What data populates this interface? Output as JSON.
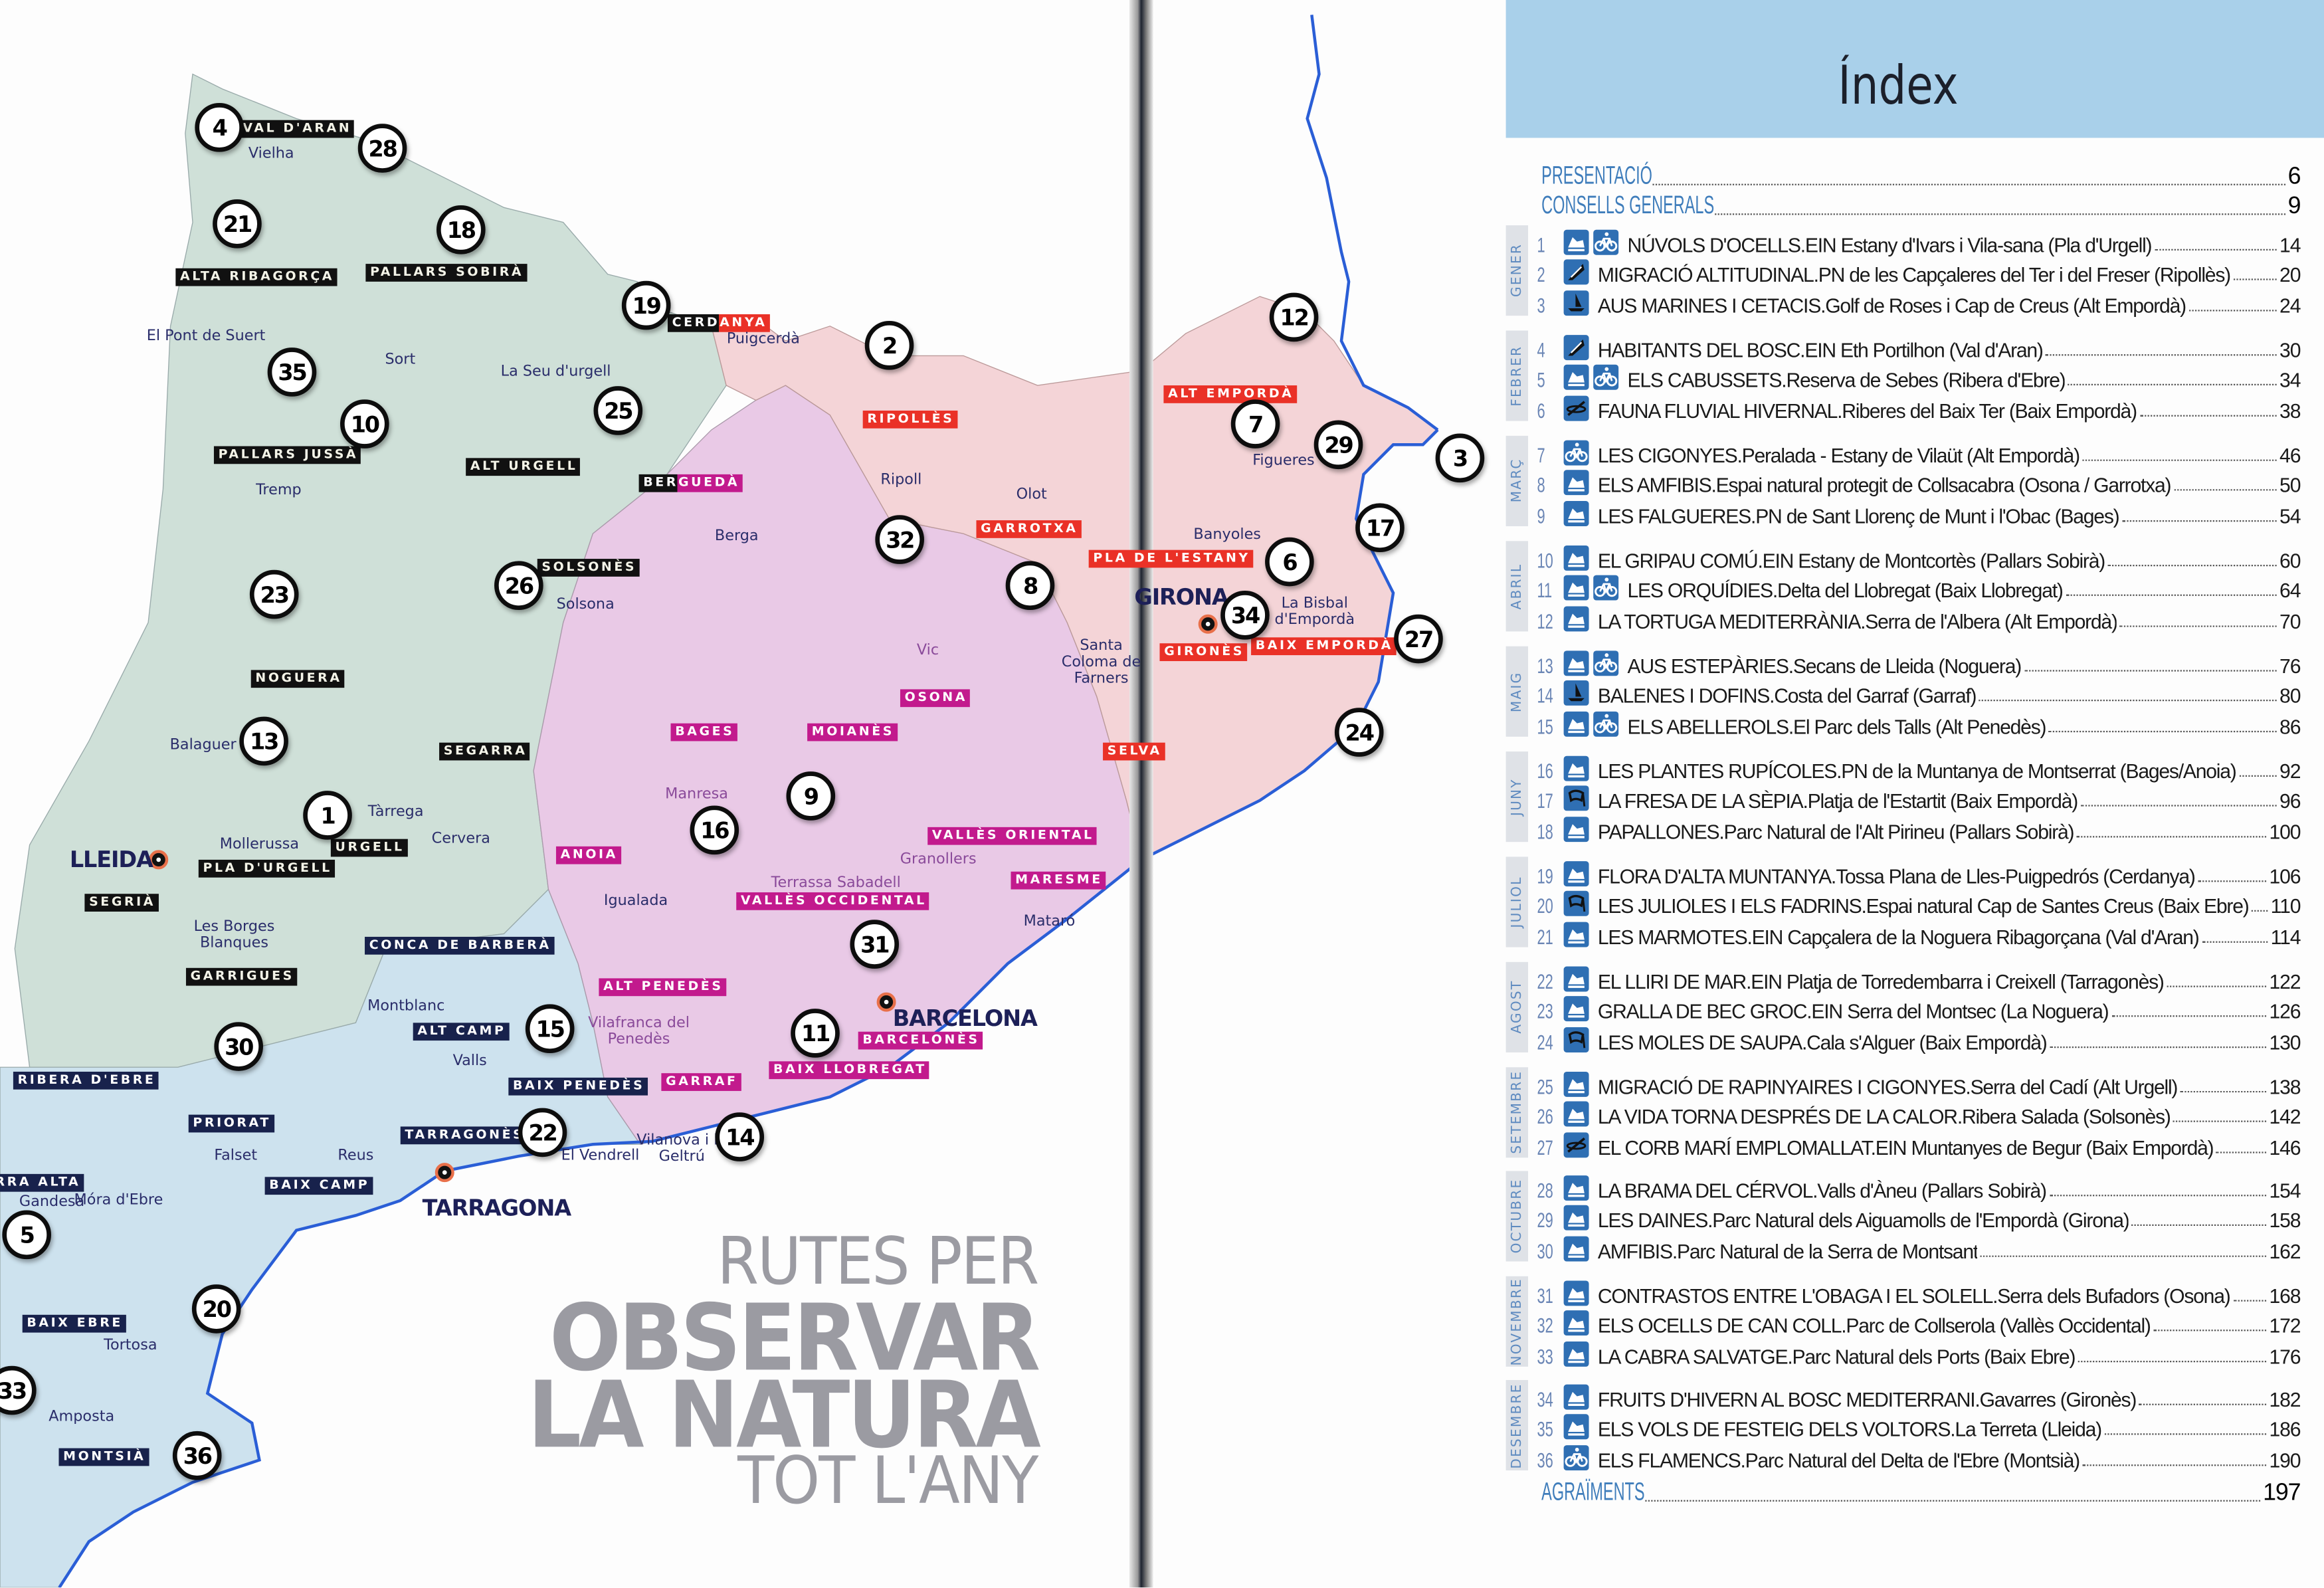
{
  "book_title": {
    "line1": "RUTES PER",
    "line2": "OBSERVAR",
    "line3": "LA NATURA",
    "line4": "TOT L'ANY"
  },
  "colors": {
    "pyrenees_lleida_region": "#cfe0d8",
    "tarragona_region": "#cde2ee",
    "barcelona_region": "#e9c9e6",
    "girona_region": "#f4d4d7",
    "coastline": "#2a5ed6",
    "index_band": "#a9d0ea",
    "index_heading": "#3f7dbb",
    "icon_blue": "#2f6fb3"
  },
  "map": {
    "capitals": [
      "LLEIDA",
      "BARCELONA",
      "TARRAGONA",
      "GIRONA"
    ],
    "route_markers": [
      "4",
      "28",
      "21",
      "18",
      "19",
      "2",
      "35",
      "10",
      "25",
      "12",
      "7",
      "29",
      "3",
      "17",
      "6",
      "32",
      "8",
      "26",
      "23",
      "34",
      "27",
      "24",
      "13",
      "1",
      "9",
      "16",
      "31",
      "11",
      "15",
      "30",
      "22",
      "14",
      "5",
      "20",
      "33",
      "36"
    ],
    "comarques": [
      {
        "name": "VAL D'ARAN",
        "style": "black"
      },
      {
        "name": "ALTA RIBAGORÇA",
        "style": "black"
      },
      {
        "name": "PALLARS SOBIRÀ",
        "style": "black"
      },
      {
        "name": "PALLARS JUSSÀ",
        "style": "black"
      },
      {
        "name": "ALT URGELL",
        "style": "black"
      },
      {
        "name": "SOLSONÈS",
        "style": "black"
      },
      {
        "name": "NOGUERA",
        "style": "black"
      },
      {
        "name": "SEGARRA",
        "style": "black"
      },
      {
        "name": "URGELL",
        "style": "black"
      },
      {
        "name": "PLA D'URGELL",
        "style": "black"
      },
      {
        "name": "SEGRIÀ",
        "style": "black"
      },
      {
        "name": "GARRIGUES",
        "style": "black"
      },
      {
        "name": "CERDANYA",
        "style": "black-red"
      },
      {
        "name": "BERGUEDÀ",
        "style": "black-magenta"
      },
      {
        "name": "CONCA DE BARBERÀ",
        "style": "navy"
      },
      {
        "name": "ALT CAMP",
        "style": "navy"
      },
      {
        "name": "RIBERA D'EBRE",
        "style": "navy"
      },
      {
        "name": "PRIORAT",
        "style": "navy"
      },
      {
        "name": "BAIX PENEDÈS",
        "style": "navy"
      },
      {
        "name": "TARRAGONÈS",
        "style": "navy"
      },
      {
        "name": "BAIX CAMP",
        "style": "navy"
      },
      {
        "name": "RRA ALTA",
        "style": "navy"
      },
      {
        "name": "BAIX EBRE",
        "style": "navy"
      },
      {
        "name": "MONTSIÀ",
        "style": "navy"
      },
      {
        "name": "BAGES",
        "style": "magenta"
      },
      {
        "name": "MOIANÈS",
        "style": "magenta"
      },
      {
        "name": "OSONA",
        "style": "magenta"
      },
      {
        "name": "ANOIA",
        "style": "magenta"
      },
      {
        "name": "VALLÈS ORIENTAL",
        "style": "magenta"
      },
      {
        "name": "VALLÈS OCCIDENTAL",
        "style": "magenta"
      },
      {
        "name": "MARESME",
        "style": "magenta"
      },
      {
        "name": "ALT PENEDÈS",
        "style": "magenta"
      },
      {
        "name": "GARRAF",
        "style": "magenta"
      },
      {
        "name": "BAIX LLOBREGAT",
        "style": "magenta"
      },
      {
        "name": "BARCELONÈS",
        "style": "magenta"
      },
      {
        "name": "RIPOLLÈS",
        "style": "red"
      },
      {
        "name": "GARROTXA",
        "style": "red"
      },
      {
        "name": "ALT EMPORDÀ",
        "style": "red"
      },
      {
        "name": "PLA DE L'ESTANY",
        "style": "red"
      },
      {
        "name": "GIRONÈS",
        "style": "red"
      },
      {
        "name": "BAIX EMPORDÀ",
        "style": "red"
      },
      {
        "name": "SELVA",
        "style": "red"
      }
    ],
    "towns": [
      "Vielha",
      "El Pont de Suert",
      "Sort",
      "La Seu d'urgell",
      "Puigcerdà",
      "Tremp",
      "Ripoll",
      "Olot",
      "Berga",
      "Solsona",
      "Vic",
      "Santa Coloma de Farners",
      "Banyoles",
      "Figueres",
      "La Bisbal d'Empordà",
      "Balaguer",
      "Tàrrega",
      "Cervera",
      "Mollerussa",
      "Les Borges Blanques",
      "Manresa",
      "Igualada",
      "Terrassa  Sabadell",
      "Granollers",
      "Mataró",
      "Montblanc",
      "Valls",
      "Vilafranca del Penedès",
      "Falset",
      "Reus",
      "Móra d'Ebre",
      "Gandesa",
      "El Vendrell",
      "Vilanova i la Geltrú",
      "Tortosa",
      "Amposta"
    ]
  },
  "index": {
    "title": "Índex",
    "front": [
      {
        "label": "PRESENTACIÓ",
        "page": "6"
      },
      {
        "label": "CONSELLS GENERALS",
        "page": "9"
      }
    ],
    "back": {
      "label": "AGRAÏMENTS",
      "page": "197"
    },
    "months": [
      {
        "name": "GENER",
        "routes": [
          {
            "num": "1",
            "icons": [
              "hiking",
              "bike"
            ],
            "title": "NÚVOLS D'OCELLS",
            "place": "EIN Estany d'Ivars i Vila-sana (Pla d'Urgell)",
            "page": "14"
          },
          {
            "num": "2",
            "icons": [
              "forest"
            ],
            "title": "MIGRACIÓ ALTITUDINAL",
            "place": "PN de les Capçaleres del Ter i del Freser (Ripollès)",
            "page": "20"
          },
          {
            "num": "3",
            "icons": [
              "boat"
            ],
            "title": "AUS MARINES I CETACIS",
            "place": "Golf de Roses i Cap de Creus (Alt Empordà)",
            "page": "24"
          }
        ]
      },
      {
        "name": "FEBRER",
        "routes": [
          {
            "num": "4",
            "icons": [
              "forest"
            ],
            "title": "HABITANTS DEL BOSC",
            "place": "EIN Eth Portilhon (Val d'Aran)",
            "page": "30"
          },
          {
            "num": "5",
            "icons": [
              "hiking",
              "bike"
            ],
            "title": "ELS CABUSSETS",
            "place": "Reserva de Sebes (Ribera d'Ebre)",
            "page": "34"
          },
          {
            "num": "6",
            "icons": [
              "kayak"
            ],
            "title": "FAUNA FLUVIAL HIVERNAL",
            "place": "Riberes del Baix Ter (Baix Empordà)",
            "page": "38"
          }
        ]
      },
      {
        "name": "MARÇ",
        "routes": [
          {
            "num": "7",
            "icons": [
              "bike"
            ],
            "title": "LES CIGONYES",
            "place": "Peralada - Estany de Vilaüt (Alt Empordà)",
            "page": "46"
          },
          {
            "num": "8",
            "icons": [
              "hiking"
            ],
            "title": "ELS AMFIBIS",
            "place": "Espai natural protegit de Collsacabra (Osona / Garrotxa)",
            "page": "50"
          },
          {
            "num": "9",
            "icons": [
              "hiking"
            ],
            "title": "LES FALGUERES",
            "place": "PN de Sant Llorenç de Munt i l'Obac (Bages)",
            "page": "54"
          }
        ]
      },
      {
        "name": "ABRIL",
        "routes": [
          {
            "num": "10",
            "icons": [
              "hiking"
            ],
            "title": "EL GRIPAU COMÚ",
            "place": "EIN Estany de Montcortès (Pallars Sobirà)",
            "page": "60"
          },
          {
            "num": "11",
            "icons": [
              "hiking",
              "bike"
            ],
            "title": "LES ORQUÍDIES",
            "place": "Delta del Llobregat (Baix Llobregat)",
            "page": "64"
          },
          {
            "num": "12",
            "icons": [
              "hiking"
            ],
            "title": "LA TORTUGA MEDITERRÀNIA",
            "place": "Serra de l'Albera (Alt Empordà)",
            "page": "70"
          }
        ]
      },
      {
        "name": "MAIG",
        "routes": [
          {
            "num": "13",
            "icons": [
              "hiking",
              "bike"
            ],
            "title": "AUS ESTEPÀRIES",
            "place": "Secans de Lleida (Noguera)",
            "page": "76"
          },
          {
            "num": "14",
            "icons": [
              "boat"
            ],
            "title": "BALENES I DOFINS",
            "place": "Costa del Garraf (Garraf)",
            "page": "80"
          },
          {
            "num": "15",
            "icons": [
              "hiking",
              "bike"
            ],
            "title": "ELS ABELLEROLS",
            "place": "El Parc dels Talls (Alt Penedès)",
            "page": "86"
          }
        ]
      },
      {
        "name": "JUNY",
        "routes": [
          {
            "num": "16",
            "icons": [
              "hiking"
            ],
            "title": "LES PLANTES RUPÍCOLES",
            "place": "PN de la Muntanya de Montserrat (Bages/Anoia)",
            "page": "92"
          },
          {
            "num": "17",
            "icons": [
              "snorkel"
            ],
            "title": "LA FRESA DE LA SÈPIA",
            "place": "Platja de l'Estartit (Baix Empordà)",
            "page": "96"
          },
          {
            "num": "18",
            "icons": [
              "hiking"
            ],
            "title": "PAPALLONES",
            "place": "Parc Natural de l'Alt Pirineu (Pallars Sobirà)",
            "page": "100"
          }
        ]
      },
      {
        "name": "JULIOL",
        "routes": [
          {
            "num": "19",
            "icons": [
              "hiking"
            ],
            "title": "FLORA D'ALTA MUNTANYA",
            "place": "Tossa Plana de Lles-Puigpedrós (Cerdanya)",
            "page": "106"
          },
          {
            "num": "20",
            "icons": [
              "snorkel"
            ],
            "title": "LES JULIOLES I ELS FADRINS",
            "place": "Espai natural Cap de Santes Creus (Baix Ebre)",
            "page": "110"
          },
          {
            "num": "21",
            "icons": [
              "hiking"
            ],
            "title": "LES MARMOTES",
            "place": "EIN Capçalera de la Noguera Ribagorçana (Val d'Aran)",
            "page": "114"
          }
        ]
      },
      {
        "name": "AGOST",
        "routes": [
          {
            "num": "22",
            "icons": [
              "hiking"
            ],
            "title": "EL LLIRI DE MAR",
            "place": "EIN Platja de Torredembarra i Creixell (Tarragonès)",
            "page": "122"
          },
          {
            "num": "23",
            "icons": [
              "hiking"
            ],
            "title": "GRALLA DE BEC GROC",
            "place": "EIN Serra del Montsec (La Noguera)",
            "page": "126"
          },
          {
            "num": "24",
            "icons": [
              "snorkel"
            ],
            "title": "LES MOLES DE SAUPA",
            "place": "Cala s'Alguer (Baix Empordà)",
            "page": "130"
          }
        ]
      },
      {
        "name": "SETEMBRE",
        "routes": [
          {
            "num": "25",
            "icons": [
              "hiking"
            ],
            "title": "MIGRACIÓ DE RAPINYAIRES I CIGONYES",
            "place": "Serra del Cadí (Alt Urgell)",
            "page": "138"
          },
          {
            "num": "26",
            "icons": [
              "hiking"
            ],
            "title": "LA VIDA TORNA DESPRÉS DE LA CALOR",
            "place": "Ribera Salada (Solsonès)",
            "page": "142"
          },
          {
            "num": "27",
            "icons": [
              "kayak"
            ],
            "title": "EL CORB MARÍ EMPLOMALLAT",
            "place": "EIN Muntanyes de Begur (Baix Empordà)",
            "page": "146"
          }
        ]
      },
      {
        "name": "OCTUBRE",
        "routes": [
          {
            "num": "28",
            "icons": [
              "hiking"
            ],
            "title": "LA BRAMA DEL CÉRVOL",
            "place": "Valls d'Àneu (Pallars Sobirà)",
            "page": "154"
          },
          {
            "num": "29",
            "icons": [
              "hiking"
            ],
            "title": "LES DAINES",
            "place": "Parc Natural dels Aiguamolls de l'Empordà (Girona)",
            "page": "158"
          },
          {
            "num": "30",
            "icons": [
              "hiking"
            ],
            "title": "AMFIBIS",
            "place": "Parc Natural de la Serra de Montsant",
            "page": "162"
          }
        ]
      },
      {
        "name": "NOVEMBRE",
        "routes": [
          {
            "num": "31",
            "icons": [
              "hiking"
            ],
            "title": "CONTRASTOS ENTRE L'OBAGA I EL SOLELL",
            "place": "Serra dels Bufadors (Osona)",
            "page": "168"
          },
          {
            "num": "32",
            "icons": [
              "hiking"
            ],
            "title": "ELS OCELLS DE CAN COLL",
            "place": "Parc de Collserola (Vallès Occidental)",
            "page": "172"
          },
          {
            "num": "33",
            "icons": [
              "hiking"
            ],
            "title": "LA CABRA SALVATGE",
            "place": "Parc Natural dels Ports (Baix Ebre)",
            "page": "176"
          }
        ]
      },
      {
        "name": "DESEMBRE",
        "routes": [
          {
            "num": "34",
            "icons": [
              "hiking"
            ],
            "title": "FRUITS D'HIVERN AL BOSC MEDITERRANI",
            "place": "Gavarres (Gironès)",
            "page": "182"
          },
          {
            "num": "35",
            "icons": [
              "hiking"
            ],
            "title": "ELS VOLS DE FESTEIG DELS VOLTORS",
            "place": "La Terreta (Lleida)",
            "page": "186"
          },
          {
            "num": "36",
            "icons": [
              "bike"
            ],
            "title": "ELS FLAMENCS",
            "place": "Parc Natural del Delta de l'Ebre (Montsià)",
            "page": "190"
          }
        ]
      }
    ]
  }
}
